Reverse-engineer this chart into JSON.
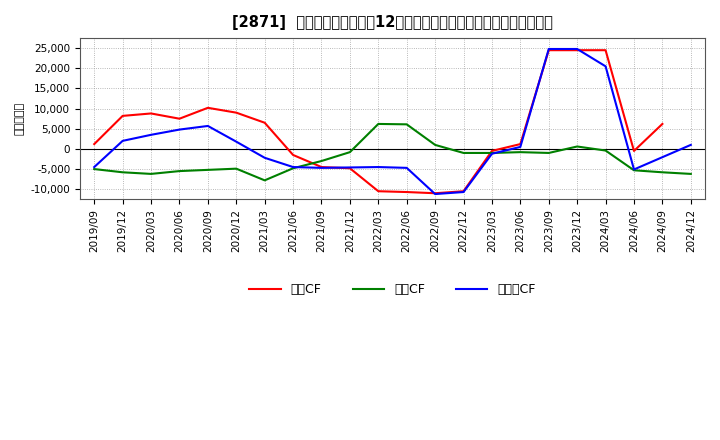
{
  "title": "[2871]  キャッシュフローの12か月移動合計の対前年同期増減額の推移",
  "ylabel": "（百万円）",
  "xlabels": [
    "2019/09",
    "2019/12",
    "2020/03",
    "2020/06",
    "2020/09",
    "2020/12",
    "2021/03",
    "2021/06",
    "2021/09",
    "2021/12",
    "2022/03",
    "2022/06",
    "2022/09",
    "2022/12",
    "2023/03",
    "2023/06",
    "2023/09",
    "2023/12",
    "2024/03",
    "2024/06",
    "2024/09",
    "2024/12"
  ],
  "operating_cf": [
    1200,
    8200,
    8800,
    7500,
    10200,
    9000,
    6500,
    -1500,
    -4500,
    -4800,
    -10500,
    -10700,
    -11000,
    -10500,
    -500,
    1200,
    24500,
    24500,
    24500,
    -500,
    6200,
    null
  ],
  "investing_cf": [
    -5000,
    -5800,
    -6200,
    -5500,
    -5200,
    -4900,
    -7800,
    -4800,
    -3000,
    -800,
    6200,
    6100,
    1000,
    -1000,
    -1000,
    -800,
    -1000,
    600,
    -400,
    -5300,
    -5800,
    -6200
  ],
  "free_cf": [
    -4500,
    2000,
    3500,
    4800,
    5700,
    1800,
    -2200,
    -4500,
    -4700,
    -4600,
    -4500,
    -4700,
    -11200,
    -10700,
    -1200,
    500,
    24800,
    24800,
    20500,
    -5100,
    null,
    1000
  ],
  "operating_color": "#ff0000",
  "investing_color": "#008000",
  "free_color": "#0000ff",
  "ylim": [
    -12500,
    27500
  ],
  "yticks": [
    -10000,
    -5000,
    0,
    5000,
    10000,
    15000,
    20000,
    25000
  ],
  "bg_color": "#ffffff",
  "grid_color": "#999999",
  "title_fontsize": 10.5,
  "tick_fontsize": 7.5,
  "ylabel_fontsize": 8,
  "legend_fontsize": 9
}
